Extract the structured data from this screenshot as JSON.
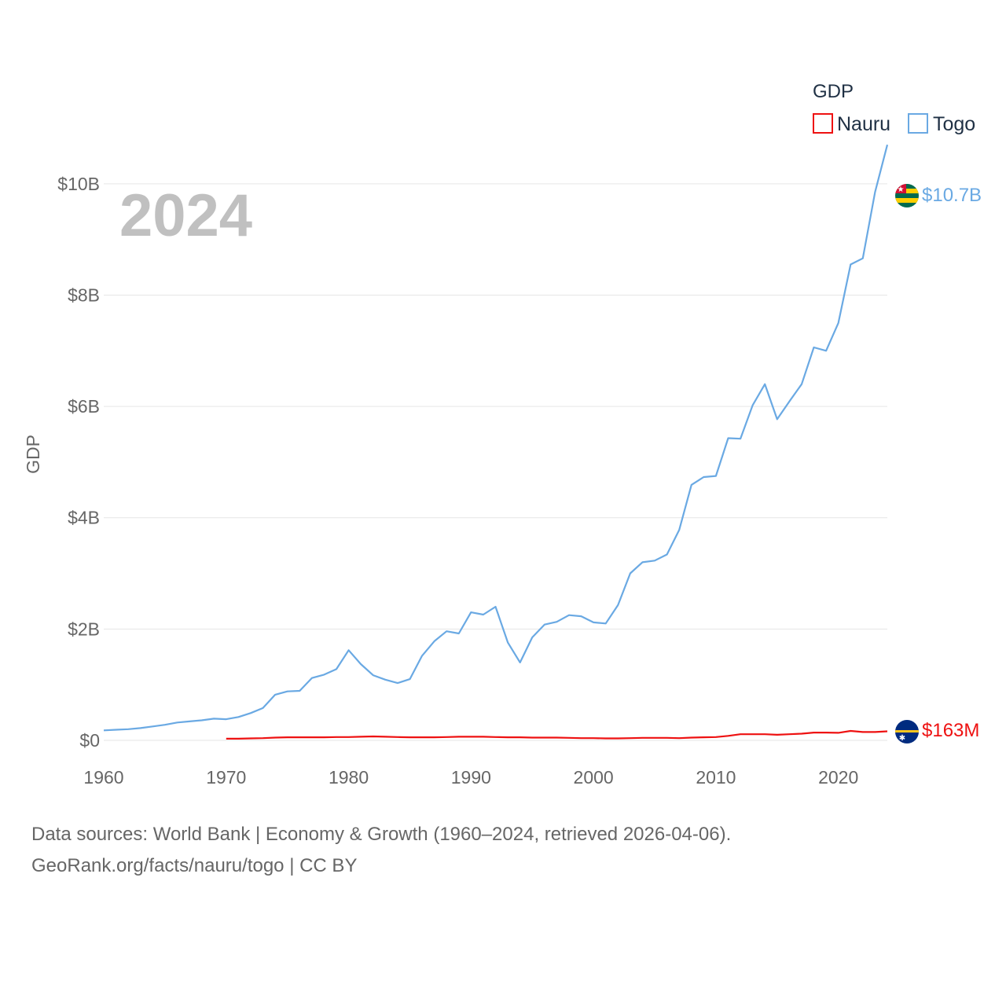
{
  "chart_data": {
    "type": "line",
    "ylabel": "GDP",
    "legend_title": "GDP",
    "year_display": "2024",
    "xlim": [
      1960,
      2024
    ],
    "ylim": [
      0,
      11000000000
    ],
    "x_ticks": [
      1960,
      1970,
      1980,
      1990,
      2000,
      2010,
      2020
    ],
    "x_tick_labels": [
      "1960",
      "1970",
      "1980",
      "1990",
      "2000",
      "2010",
      "2020"
    ],
    "y_ticks": [
      0,
      2000000000,
      4000000000,
      6000000000,
      8000000000,
      10000000000
    ],
    "y_tick_labels": [
      "$0",
      "$2B",
      "$4B",
      "$6B",
      "$8B",
      "$10B"
    ],
    "series": [
      {
        "name": "Nauru",
        "color": "#ee1111",
        "end_label": "$163M",
        "flag": "nauru",
        "start_year": 1970,
        "values": [
          30000000,
          30000000,
          35000000,
          40000000,
          50000000,
          55000000,
          55000000,
          55000000,
          55000000,
          60000000,
          60000000,
          65000000,
          70000000,
          65000000,
          60000000,
          55000000,
          55000000,
          55000000,
          60000000,
          65000000,
          65000000,
          65000000,
          60000000,
          55000000,
          55000000,
          50000000,
          50000000,
          50000000,
          45000000,
          40000000,
          40000000,
          35000000,
          35000000,
          40000000,
          45000000,
          45000000,
          45000000,
          40000000,
          50000000,
          55000000,
          60000000,
          80000000,
          110000000,
          110000000,
          110000000,
          100000000,
          110000000,
          120000000,
          140000000,
          140000000,
          135000000,
          170000000,
          150000000,
          150000000,
          163000000
        ]
      },
      {
        "name": "Togo",
        "color": "#6aa9e3",
        "end_label": "$10.7B",
        "flag": "togo",
        "start_year": 1960,
        "values": [
          180000000,
          190000000,
          200000000,
          220000000,
          250000000,
          280000000,
          320000000,
          340000000,
          360000000,
          390000000,
          380000000,
          420000000,
          490000000,
          580000000,
          820000000,
          880000000,
          890000000,
          1120000000,
          1180000000,
          1280000000,
          1620000000,
          1370000000,
          1170000000,
          1090000000,
          1030000000,
          1100000000,
          1520000000,
          1780000000,
          1960000000,
          1920000000,
          2300000000,
          2260000000,
          2400000000,
          1760000000,
          1400000000,
          1850000000,
          2080000000,
          2130000000,
          2250000000,
          2230000000,
          2120000000,
          2100000000,
          2430000000,
          3000000000,
          3200000000,
          3230000000,
          3340000000,
          3780000000,
          4590000000,
          4730000000,
          4750000000,
          5430000000,
          5420000000,
          6020000000,
          6400000000,
          5770000000,
          6090000000,
          6400000000,
          7060000000,
          7000000000,
          7500000000,
          8550000000,
          8660000000,
          9850000000,
          10700000000
        ]
      }
    ]
  },
  "footer": {
    "line1": "Data sources: World Bank | Economy & Growth (1960–2024, retrieved 2026-04-06).",
    "line2": "GeoRank.org/facts/nauru/togo | CC BY"
  }
}
